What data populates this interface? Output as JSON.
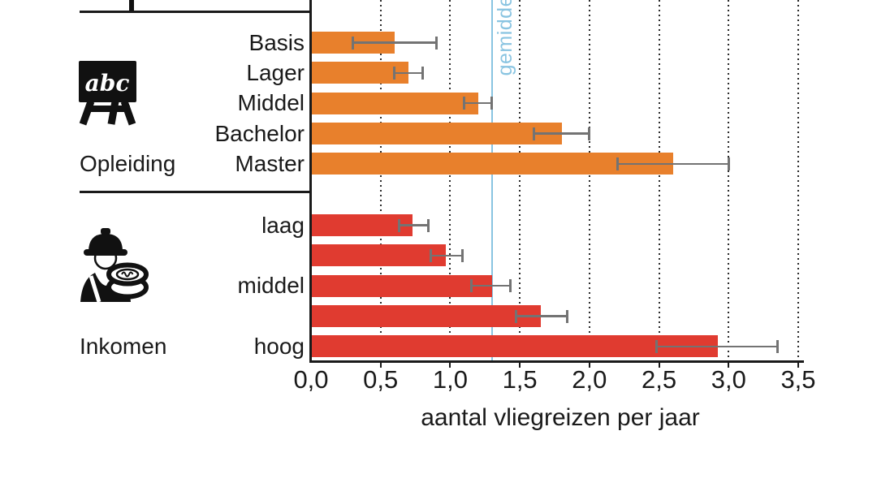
{
  "chart_data": {
    "type": "bar",
    "orientation": "horizontal",
    "title": "",
    "xlabel": "aantal vliegreizen per jaar",
    "xlim": [
      0,
      3.5
    ],
    "x_ticks": [
      "0,0",
      "0,5",
      "1,0",
      "1,5",
      "2,0",
      "2,5",
      "3,0",
      "3,5"
    ],
    "grid": "dotted-vertical",
    "reference_line": {
      "label": "gemidde",
      "value": 1.3,
      "color": "#89C4E1"
    },
    "groups": [
      {
        "section_label": "Opleiding",
        "icon": "education-chalkboard-abc-icon",
        "color": "#E8802C",
        "bars": [
          {
            "label": "Basis",
            "value": 0.6,
            "err_low": 0.3,
            "err_high": 0.9
          },
          {
            "label": "Lager",
            "value": 0.7,
            "err_low": 0.6,
            "err_high": 0.8
          },
          {
            "label": "Middel",
            "value": 1.2,
            "err_low": 1.1,
            "err_high": 1.3
          },
          {
            "label": "Bachelor",
            "value": 1.8,
            "err_low": 1.6,
            "err_high": 2.0
          },
          {
            "label": "Master",
            "value": 2.6,
            "err_low": 2.2,
            "err_high": 3.0
          }
        ]
      },
      {
        "section_label": "Inkomen",
        "icon": "income-worker-coins-icon",
        "color": "#E03B30",
        "bars": [
          {
            "label": "laag",
            "value": 0.73,
            "err_low": 0.63,
            "err_high": 0.84
          },
          {
            "label": "",
            "value": 0.97,
            "err_low": 0.86,
            "err_high": 1.09
          },
          {
            "label": "middel",
            "value": 1.3,
            "err_low": 1.15,
            "err_high": 1.43
          },
          {
            "label": "",
            "value": 1.65,
            "err_low": 1.47,
            "err_high": 1.84
          },
          {
            "label": "hoog",
            "value": 2.92,
            "err_low": 2.48,
            "err_high": 3.35
          }
        ]
      }
    ]
  },
  "colors": {
    "bar_opleiding": "#E8802C",
    "bar_inkomen": "#E03B30",
    "average_line": "#89C4E1",
    "error_bar": "#737373",
    "axis": "#1A1A1A"
  }
}
